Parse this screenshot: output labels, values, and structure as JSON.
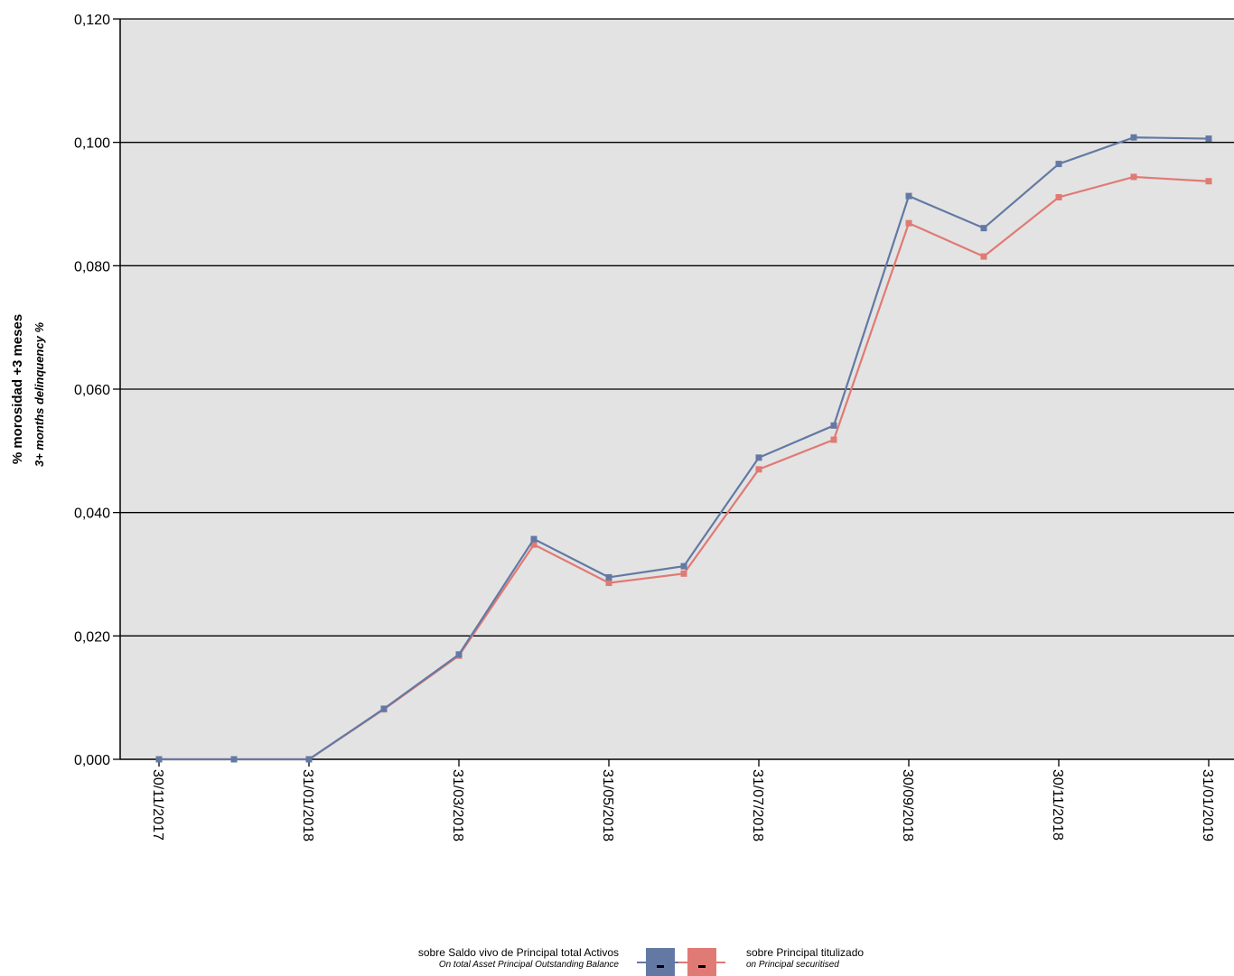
{
  "chart_data": {
    "type": "line",
    "ylabel": "% morosidad +3 meses",
    "ylabel_sub": "3+ months delinquency %",
    "ylim": [
      0,
      0.12
    ],
    "yticks": [
      0,
      0.02,
      0.04,
      0.06,
      0.08,
      0.1,
      0.12
    ],
    "ytick_labels": [
      "0,000",
      "0,020",
      "0,040",
      "0,060",
      "0,080",
      "0,100",
      "0,120"
    ],
    "x": [
      "30/11/2017",
      "31/12/2017",
      "31/01/2018",
      "28/02/2018",
      "31/03/2018",
      "30/04/2018",
      "31/05/2018",
      "30/06/2018",
      "31/07/2018",
      "31/08/2018",
      "30/09/2018",
      "31/10/2018",
      "30/11/2018",
      "31/12/2018",
      "31/01/2019"
    ],
    "xtick_labels": [
      "30/11/2017",
      "31/01/2018",
      "31/03/2018",
      "31/05/2018",
      "31/07/2018",
      "30/09/2018",
      "30/11/2018",
      "31/01/2019"
    ],
    "grid": "horizontal",
    "legend_position": "bottom",
    "plot_background": "#e3e3e3",
    "series": [
      {
        "name": "sobre Saldo vivo de Principal total Activos",
        "name_sub": "On total Asset Principal Outstanding Balance",
        "color": "#6379a4",
        "values": [
          0.0,
          0.0,
          0.0,
          0.0082,
          0.017,
          0.0357,
          0.0295,
          0.0313,
          0.0489,
          0.0541,
          0.0913,
          0.0861,
          0.0965,
          0.1008,
          0.1006
        ]
      },
      {
        "name": "sobre Principal titulizado",
        "name_sub": "on Principal securitised",
        "color": "#e07a74",
        "values": [
          0.0,
          0.0,
          0.0,
          0.0081,
          0.0168,
          0.0348,
          0.0286,
          0.0301,
          0.047,
          0.0518,
          0.0869,
          0.0815,
          0.0911,
          0.0944,
          0.0937
        ]
      }
    ]
  }
}
